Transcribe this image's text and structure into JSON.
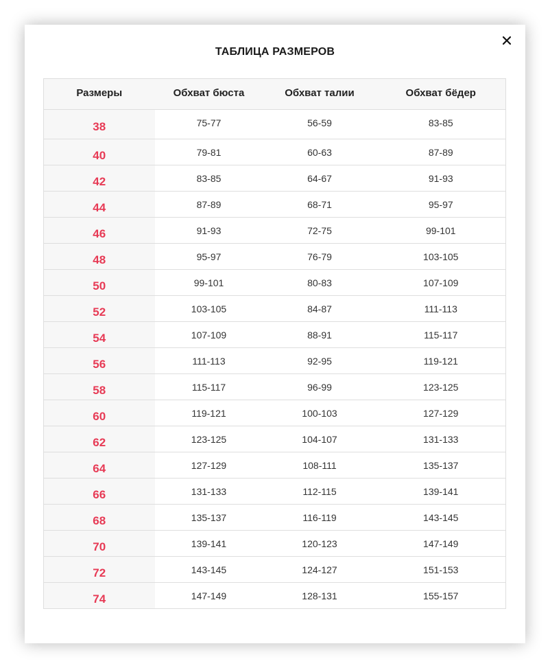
{
  "modal": {
    "title": "ТАБЛИЦА РАЗМЕРОВ",
    "close_icon": "close-icon"
  },
  "colors": {
    "accent": "#e73a55",
    "header_bg": "#f7f7f7",
    "border": "#dedede"
  },
  "table": {
    "headers": [
      "Размеры",
      "Обхват бюста",
      "Обхват талии",
      "Обхват бёдер"
    ],
    "rows": [
      [
        "38",
        "75-77",
        "56-59",
        "83-85"
      ],
      [
        "40",
        "79-81",
        "60-63",
        "87-89"
      ],
      [
        "42",
        "83-85",
        "64-67",
        "91-93"
      ],
      [
        "44",
        "87-89",
        "68-71",
        "95-97"
      ],
      [
        "46",
        "91-93",
        "72-75",
        "99-101"
      ],
      [
        "48",
        "95-97",
        "76-79",
        "103-105"
      ],
      [
        "50",
        "99-101",
        "80-83",
        "107-109"
      ],
      [
        "52",
        "103-105",
        "84-87",
        "111-113"
      ],
      [
        "54",
        "107-109",
        "88-91",
        "115-117"
      ],
      [
        "56",
        "111-113",
        "92-95",
        "119-121"
      ],
      [
        "58",
        "115-117",
        "96-99",
        "123-125"
      ],
      [
        "60",
        "119-121",
        "100-103",
        "127-129"
      ],
      [
        "62",
        "123-125",
        "104-107",
        "131-133"
      ],
      [
        "64",
        "127-129",
        "108-111",
        "135-137"
      ],
      [
        "66",
        "131-133",
        "112-115",
        "139-141"
      ],
      [
        "68",
        "135-137",
        "116-119",
        "143-145"
      ],
      [
        "70",
        "139-141",
        "120-123",
        "147-149"
      ],
      [
        "72",
        "143-145",
        "124-127",
        "151-153"
      ],
      [
        "74",
        "147-149",
        "128-131",
        "155-157"
      ]
    ]
  }
}
